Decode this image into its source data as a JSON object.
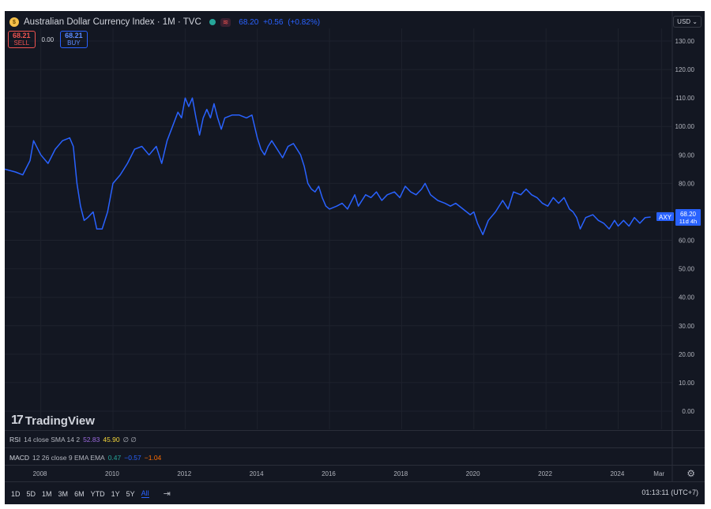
{
  "header": {
    "title": "Australian Dollar Currency Index · 1M · TVC",
    "coin_label": "$",
    "price": "68.20",
    "change": "+0.56",
    "change_pct": "(+0.82%)"
  },
  "trade": {
    "sell_value": "68.21",
    "sell_label": "SELL",
    "spread": "0.00",
    "buy_value": "68.21",
    "buy_label": "BUY"
  },
  "currency": "USD",
  "price_tag": {
    "symbol": "AXY",
    "value": "68.20",
    "countdown": "11d 4h"
  },
  "logo_text": "TradingView",
  "indicators": {
    "rsi": {
      "name": "RSI",
      "params": "14 close SMA 14 2",
      "v1": "52.83",
      "v2": "45.90",
      "v3": "∅ ∅"
    },
    "macd": {
      "name": "MACD",
      "params": "12 26 close 9 EMA EMA",
      "v1": "0.47",
      "v2": "−0.57",
      "v3": "−1.04"
    }
  },
  "x_axis": [
    "2008",
    "2010",
    "2012",
    "2014",
    "2016",
    "2018",
    "2020",
    "2022",
    "2024",
    "Mar"
  ],
  "timeframes": [
    "1D",
    "5D",
    "1M",
    "3M",
    "6M",
    "YTD",
    "1Y",
    "5Y",
    "All"
  ],
  "active_timeframe": "All",
  "clock": "01:13:11 (UTC+7)",
  "colors": {
    "line": "#2962ff",
    "background": "#131722",
    "grid": "#1e222d"
  },
  "chart_data": {
    "type": "line",
    "series": [
      {
        "values": [
          [
            2007.0,
            85
          ],
          [
            2007.3,
            84
          ],
          [
            2007.5,
            83
          ],
          [
            2007.7,
            88
          ],
          [
            2007.8,
            95
          ],
          [
            2008.0,
            90
          ],
          [
            2008.2,
            87
          ],
          [
            2008.4,
            92
          ],
          [
            2008.6,
            95
          ],
          [
            2008.8,
            96
          ],
          [
            2008.9,
            93
          ],
          [
            2009.0,
            80
          ],
          [
            2009.1,
            72
          ],
          [
            2009.2,
            67
          ],
          [
            2009.3,
            68
          ],
          [
            2009.45,
            70
          ],
          [
            2009.55,
            64
          ],
          [
            2009.7,
            64
          ],
          [
            2009.85,
            70
          ],
          [
            2010.0,
            80
          ],
          [
            2010.2,
            83
          ],
          [
            2010.4,
            87
          ],
          [
            2010.6,
            92
          ],
          [
            2010.8,
            93
          ],
          [
            2011.0,
            90
          ],
          [
            2011.2,
            93
          ],
          [
            2011.35,
            87
          ],
          [
            2011.5,
            95
          ],
          [
            2011.65,
            100
          ],
          [
            2011.8,
            105
          ],
          [
            2011.9,
            103
          ],
          [
            2012.0,
            110
          ],
          [
            2012.1,
            107
          ],
          [
            2012.2,
            110
          ],
          [
            2012.3,
            103
          ],
          [
            2012.4,
            97
          ],
          [
            2012.5,
            103
          ],
          [
            2012.6,
            106
          ],
          [
            2012.7,
            103
          ],
          [
            2012.8,
            108
          ],
          [
            2012.9,
            103
          ],
          [
            2013.0,
            99
          ],
          [
            2013.1,
            103
          ],
          [
            2013.3,
            104
          ],
          [
            2013.5,
            104
          ],
          [
            2013.7,
            103
          ],
          [
            2013.85,
            104
          ],
          [
            2014.0,
            96
          ],
          [
            2014.1,
            92
          ],
          [
            2014.2,
            90
          ],
          [
            2014.3,
            93
          ],
          [
            2014.4,
            95
          ],
          [
            2014.55,
            92
          ],
          [
            2014.7,
            89
          ],
          [
            2014.85,
            93
          ],
          [
            2015.0,
            94
          ],
          [
            2015.1,
            92
          ],
          [
            2015.2,
            90
          ],
          [
            2015.3,
            86
          ],
          [
            2015.4,
            80
          ],
          [
            2015.5,
            78
          ],
          [
            2015.6,
            77
          ],
          [
            2015.7,
            79
          ],
          [
            2015.8,
            75
          ],
          [
            2015.9,
            72
          ],
          [
            2016.0,
            71
          ],
          [
            2016.2,
            72
          ],
          [
            2016.35,
            73
          ],
          [
            2016.5,
            71
          ],
          [
            2016.7,
            76
          ],
          [
            2016.8,
            72
          ],
          [
            2016.9,
            74
          ],
          [
            2017.0,
            76
          ],
          [
            2017.15,
            75
          ],
          [
            2017.3,
            77
          ],
          [
            2017.45,
            74
          ],
          [
            2017.6,
            76
          ],
          [
            2017.8,
            77
          ],
          [
            2017.95,
            75
          ],
          [
            2018.1,
            79
          ],
          [
            2018.25,
            77
          ],
          [
            2018.4,
            76
          ],
          [
            2018.55,
            78
          ],
          [
            2018.65,
            80
          ],
          [
            2018.8,
            76
          ],
          [
            2019.0,
            74
          ],
          [
            2019.2,
            73
          ],
          [
            2019.35,
            72
          ],
          [
            2019.5,
            73
          ],
          [
            2019.7,
            71
          ],
          [
            2019.9,
            69
          ],
          [
            2020.0,
            70
          ],
          [
            2020.1,
            66
          ],
          [
            2020.25,
            62
          ],
          [
            2020.4,
            67
          ],
          [
            2020.6,
            70
          ],
          [
            2020.8,
            74
          ],
          [
            2020.95,
            71
          ],
          [
            2021.1,
            77
          ],
          [
            2021.3,
            76
          ],
          [
            2021.45,
            78
          ],
          [
            2021.6,
            76
          ],
          [
            2021.75,
            75
          ],
          [
            2021.9,
            73
          ],
          [
            2022.05,
            72
          ],
          [
            2022.2,
            75
          ],
          [
            2022.35,
            73
          ],
          [
            2022.5,
            75
          ],
          [
            2022.65,
            71
          ],
          [
            2022.75,
            70
          ],
          [
            2022.85,
            68
          ],
          [
            2022.95,
            64
          ],
          [
            2023.1,
            68
          ],
          [
            2023.3,
            69
          ],
          [
            2023.45,
            67
          ],
          [
            2023.6,
            66
          ],
          [
            2023.75,
            64
          ],
          [
            2023.9,
            67
          ],
          [
            2024.0,
            65
          ],
          [
            2024.15,
            67
          ],
          [
            2024.3,
            65
          ],
          [
            2024.45,
            68
          ],
          [
            2024.6,
            66
          ],
          [
            2024.75,
            68
          ],
          [
            2024.9,
            68.2
          ]
        ]
      }
    ],
    "ylim": [
      0,
      135
    ],
    "yticks": [
      0,
      10,
      20,
      30,
      40,
      50,
      60,
      70,
      80,
      90,
      100,
      110,
      120,
      130
    ],
    "ytick_labels": [
      "0.00",
      "10.00",
      "20.00",
      "30.00",
      "40.00",
      "50.00",
      "60.00",
      "70.00",
      "80.00",
      "90.00",
      "100.00",
      "110.00",
      "120.00",
      "130.00"
    ],
    "xlim": [
      2007.0,
      2025.5
    ],
    "grid": true
  }
}
